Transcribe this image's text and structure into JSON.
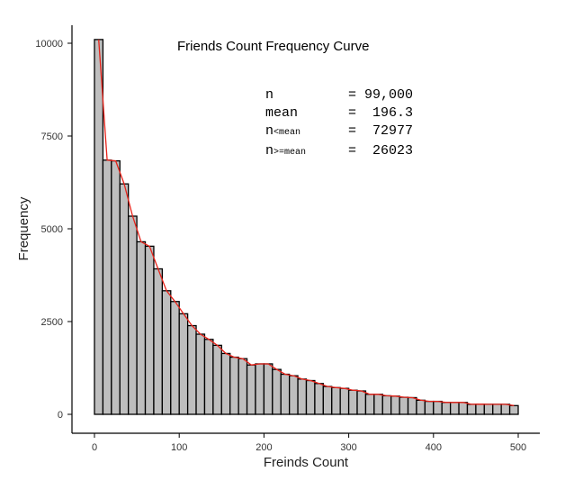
{
  "chart_data": {
    "type": "bar",
    "title": "Friends Count Frequency Curve",
    "xlabel": "Freinds Count",
    "ylabel": "Frequency",
    "xlim": [
      0,
      500
    ],
    "ylim": [
      0,
      10000
    ],
    "bin_width": 10,
    "x_ticks": [
      "0",
      "100",
      "200",
      "300",
      "400",
      "500"
    ],
    "y_ticks": [
      "0",
      "2500",
      "5000",
      "7500",
      "10000"
    ],
    "grid": false,
    "bar_color": "#bebebe",
    "bar_edge_color": "#000000",
    "curve_color": "#e8231a",
    "bin_starts": [
      0,
      10,
      20,
      30,
      40,
      50,
      60,
      70,
      80,
      90,
      100,
      110,
      120,
      130,
      140,
      150,
      160,
      170,
      180,
      190,
      200,
      210,
      220,
      230,
      240,
      250,
      260,
      270,
      280,
      290,
      300,
      310,
      320,
      330,
      340,
      350,
      360,
      370,
      380,
      390,
      400,
      410,
      420,
      430,
      440,
      450,
      460,
      470,
      480,
      490
    ],
    "values": [
      10100,
      6850,
      6830,
      6210,
      5340,
      4650,
      4530,
      3920,
      3330,
      3040,
      2710,
      2390,
      2160,
      2020,
      1860,
      1640,
      1540,
      1500,
      1330,
      1360,
      1360,
      1210,
      1080,
      1040,
      950,
      910,
      830,
      750,
      720,
      700,
      650,
      630,
      540,
      540,
      500,
      490,
      460,
      450,
      380,
      350,
      350,
      320,
      320,
      320,
      270,
      275,
      270,
      270,
      270,
      235
    ],
    "annotations": [
      {
        "label": "n",
        "sub": "",
        "eq": "=",
        "value": "99,000"
      },
      {
        "label": "mean",
        "sub": "",
        "eq": "=",
        "value": "196.3"
      },
      {
        "label": "n",
        "sub": "<mean",
        "eq": "=",
        "value": "72977"
      },
      {
        "label": "n",
        "sub": ">=mean",
        "eq": "=",
        "value": "26023"
      }
    ]
  }
}
